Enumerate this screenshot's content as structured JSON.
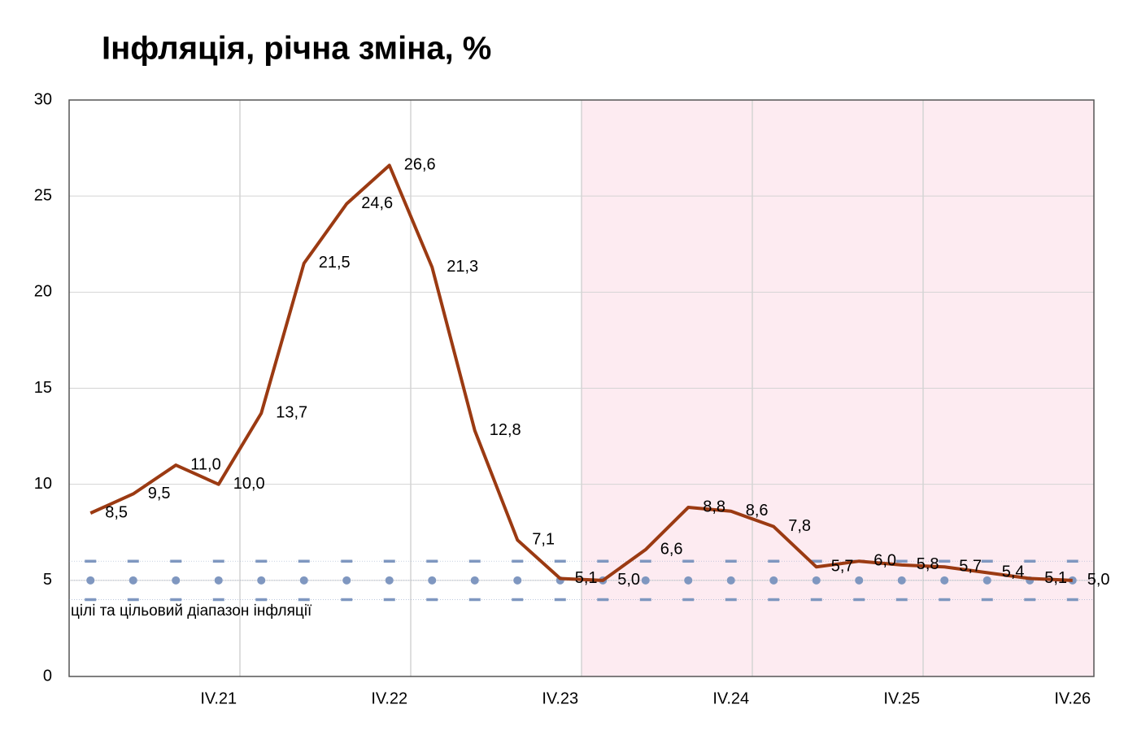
{
  "chart_data": {
    "type": "line",
    "title": "Інфляція, річна зміна, %",
    "annotation": "цілі та цільовий діапазон інфляції",
    "categories": [
      null,
      null,
      null,
      "IV.21",
      null,
      null,
      null,
      "IV.22",
      null,
      null,
      null,
      "IV.23",
      null,
      null,
      null,
      "IV.24",
      null,
      null,
      null,
      "IV.25",
      null,
      null,
      null,
      "IV.26"
    ],
    "series": [
      {
        "color": "#9b3a12",
        "style": "line",
        "values": [
          8.5,
          9.5,
          11.0,
          10.0,
          13.7,
          21.5,
          24.6,
          26.6,
          21.3,
          12.8,
          7.1,
          5.1,
          5.0,
          6.6,
          8.8,
          8.6,
          7.8,
          5.7,
          6.0,
          5.8,
          5.7,
          5.4,
          5.1,
          5.0
        ],
        "value_labels": [
          "8,5",
          "9,5",
          "11,0",
          "10,0",
          "13,7",
          "21,5",
          "24,6",
          "26,6",
          "21,3",
          "12,8",
          "7,1",
          "5,1",
          "5,0",
          "6,6",
          "8,8",
          "8,6",
          "7,8",
          "5,7",
          "6,0",
          "5,8",
          "5,7",
          "5,4",
          "5,1",
          "5,0"
        ]
      },
      {
        "color": "#7f97c0",
        "style": "dots",
        "values": [
          5,
          5,
          5,
          5,
          5,
          5,
          5,
          5,
          5,
          5,
          5,
          5,
          5,
          5,
          5,
          5,
          5,
          5,
          5,
          5,
          5,
          5,
          5,
          5
        ]
      },
      {
        "color": "#7f97c0",
        "style": "dashed",
        "values": [
          6,
          6,
          6,
          6,
          6,
          6,
          6,
          6,
          6,
          6,
          6,
          6,
          6,
          6,
          6,
          6,
          6,
          6,
          6,
          6,
          6,
          6,
          6,
          6
        ]
      },
      {
        "color": "#7f97c0",
        "style": "dashed",
        "values": [
          4,
          4,
          4,
          4,
          4,
          4,
          4,
          4,
          4,
          4,
          4,
          4,
          4,
          4,
          4,
          4,
          4,
          4,
          4,
          4,
          4,
          4,
          4,
          4
        ]
      }
    ],
    "ylim": [
      0,
      30
    ],
    "yticks": [
      0,
      5,
      10,
      15,
      20,
      25,
      30
    ],
    "grid": true,
    "shade": {
      "from": 12,
      "color": "#fdebf1"
    }
  }
}
